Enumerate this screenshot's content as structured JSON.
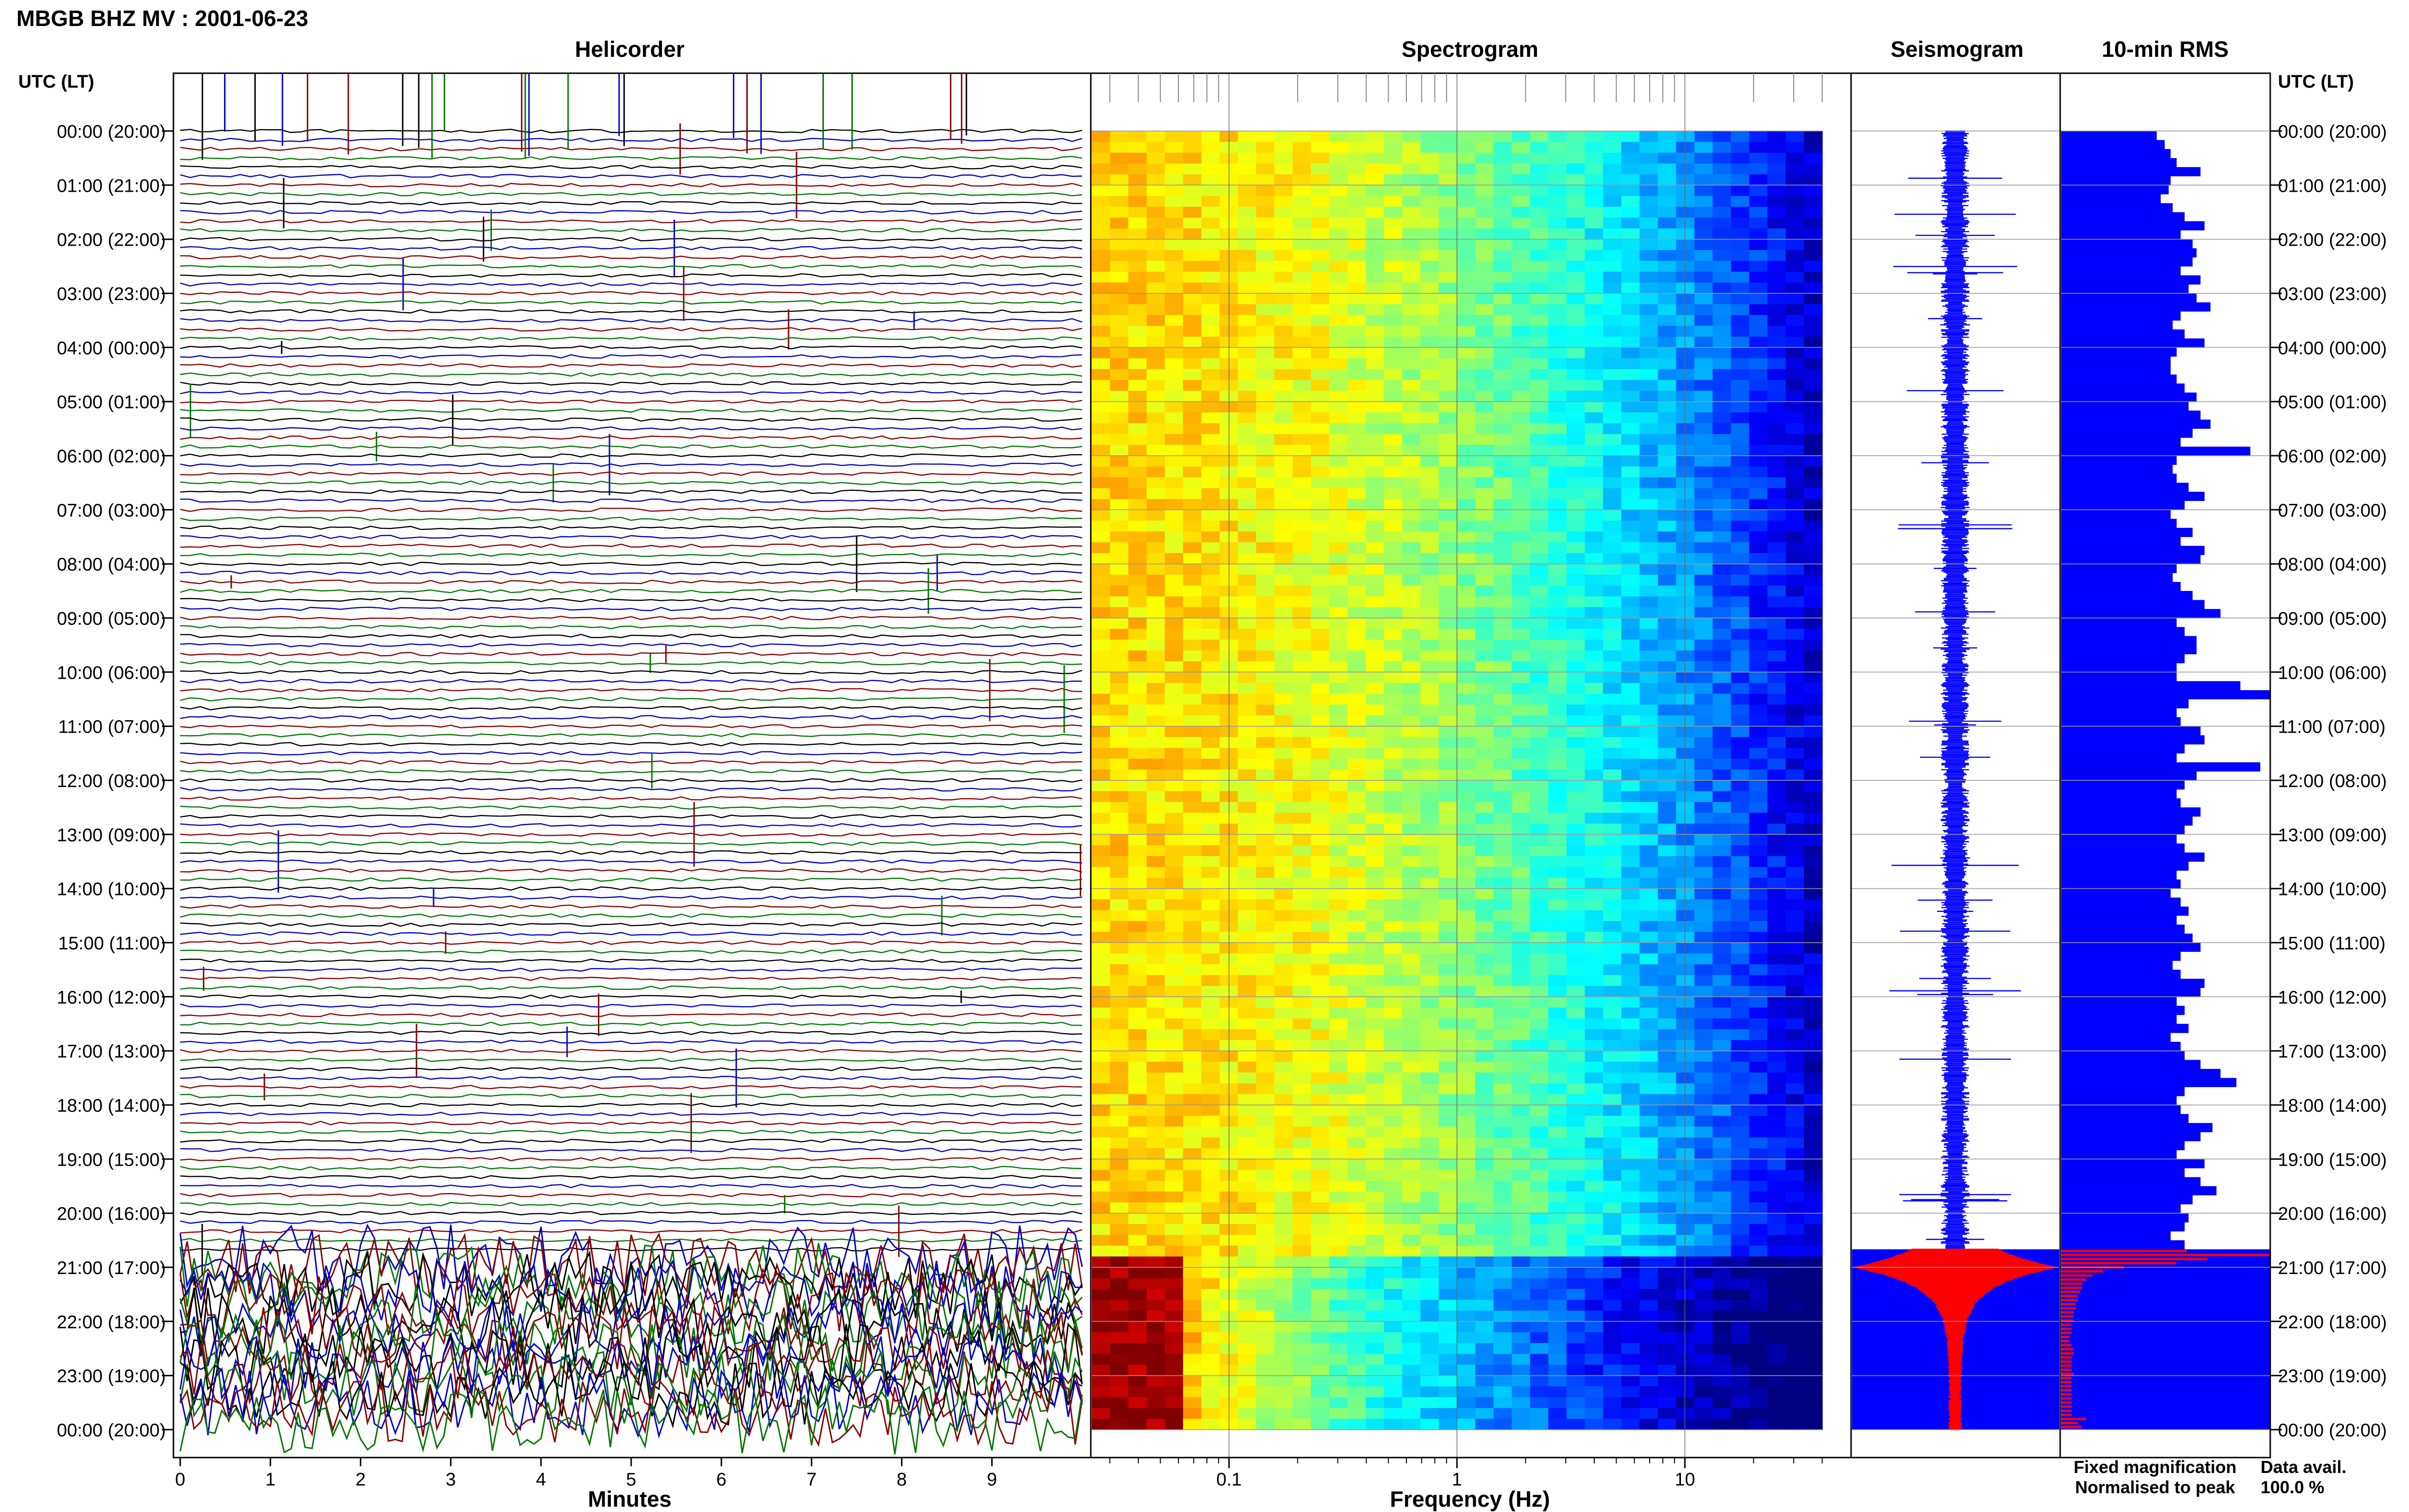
{
  "page_title": "MBGB BHZ MV : 2001-06-23",
  "left_axis_title": "UTC (LT)",
  "right_axis_title": "UTC (LT)",
  "time_labels": [
    "00:00 (20:00)",
    "01:00 (21:00)",
    "02:00 (22:00)",
    "03:00 (23:00)",
    "04:00 (00:00)",
    "05:00 (01:00)",
    "06:00 (02:00)",
    "07:00 (03:00)",
    "08:00 (04:00)",
    "09:00 (05:00)",
    "10:00 (06:00)",
    "11:00 (07:00)",
    "12:00 (08:00)",
    "13:00 (09:00)",
    "14:00 (10:00)",
    "15:00 (11:00)",
    "16:00 (12:00)",
    "17:00 (13:00)",
    "18:00 (14:00)",
    "19:00 (15:00)",
    "20:00 (16:00)",
    "21:00 (17:00)",
    "22:00 (18:00)",
    "23:00 (19:00)",
    "00:00 (20:00)"
  ],
  "legend": {
    "fixed": "Fixed magnification",
    "normalised": "Normalised to peak",
    "fixed_color": "#0000ff",
    "normalised_color": "#ff0000"
  },
  "data_avail": {
    "label": "Data avail.",
    "value": "100.0 %"
  },
  "colors": {
    "helicorder_traces": [
      "#000000",
      "#0000cc",
      "#8b0000",
      "#007700"
    ],
    "fixed": "#0000ff",
    "normalised": "#ff0000"
  },
  "chart_data": [
    {
      "type": "line",
      "panel": "helicorder",
      "title": "Helicorder",
      "xlabel": "Minutes",
      "x_ticks": [
        "0",
        "1",
        "2",
        "3",
        "4",
        "5",
        "6",
        "7",
        "8",
        "9"
      ],
      "xlim": [
        0,
        10
      ],
      "rows_per_hour": 6,
      "trace_color_cycle": [
        "black",
        "blue",
        "red",
        "green"
      ],
      "high_amplitude_from_utc": "20:40"
    },
    {
      "type": "heatmap",
      "panel": "spectrogram",
      "title": "Spectrogram",
      "xlabel": "Frequency (Hz)",
      "x_ticks": [
        "0.1",
        "1",
        "10"
      ],
      "x_scale": "log",
      "xlim": [
        0.025,
        40
      ],
      "colormap": "jet",
      "switch_to_normalised_utc": "20:40"
    },
    {
      "type": "line",
      "panel": "seismogram",
      "title": "Seismogram",
      "switch_to_normalised_utc": "20:40",
      "main_event_utc": "21:00"
    },
    {
      "type": "bar",
      "panel": "rms",
      "title": "10-min RMS",
      "orientation": "horizontal",
      "switch_to_normalised_utc": "20:40",
      "fixed_values": [
        48,
        52,
        55,
        58,
        70,
        55,
        54,
        50,
        56,
        62,
        72,
        60,
        66,
        68,
        66,
        60,
        70,
        64,
        68,
        75,
        60,
        56,
        62,
        72,
        58,
        55,
        55,
        58,
        62,
        68,
        64,
        70,
        75,
        66,
        60,
        95,
        58,
        56,
        58,
        64,
        72,
        62,
        55,
        58,
        66,
        60,
        72,
        70,
        58,
        56,
        60,
        66,
        72,
        80,
        58,
        62,
        68,
        68,
        62,
        58,
        58,
        90,
        105,
        64,
        58,
        60,
        70,
        72,
        62,
        58,
        100,
        68,
        62,
        58,
        60,
        70,
        66,
        62,
        58,
        62,
        72,
        64,
        58,
        60,
        55,
        60,
        64,
        58,
        62,
        66,
        70,
        60,
        56,
        60,
        72,
        70,
        58,
        62,
        58,
        64,
        55,
        60,
        62,
        70,
        80,
        88,
        62,
        58,
        60,
        64,
        76,
        70,
        62,
        58,
        72,
        62,
        70,
        78,
        66,
        60,
        64,
        62,
        55,
        62,
        66
      ],
      "normalised_values": [
        60,
        100,
        70,
        55,
        30,
        20,
        15,
        12,
        10,
        10,
        9,
        8,
        8,
        7,
        7,
        6,
        6,
        6,
        5,
        5,
        5,
        4,
        4,
        5,
        6,
        6,
        5,
        5,
        5,
        5,
        6,
        5,
        5,
        5,
        5,
        5,
        5,
        5,
        5,
        5,
        5,
        12,
        8,
        10
      ]
    }
  ]
}
